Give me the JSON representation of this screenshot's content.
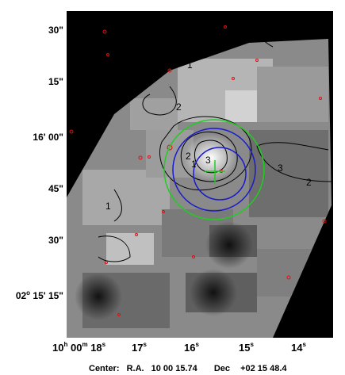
{
  "y_axis": {
    "labels": [
      {
        "text": "30\""
      },
      {
        "text": "15\""
      },
      {
        "text": "16' 00\""
      },
      {
        "text": "45\""
      },
      {
        "text": "30\""
      },
      {
        "text": "15\"",
        "prefix_deg": "02",
        "prefix_min": "15'"
      }
    ]
  },
  "x_axis": {
    "labels": [
      {
        "h": "10",
        "m": "00",
        "s": "18"
      },
      {
        "s": "17"
      },
      {
        "s": "16"
      },
      {
        "s": "15"
      },
      {
        "s": "14"
      }
    ],
    "unit_h": "h",
    "unit_m": "m",
    "unit_s": "s"
  },
  "footer": {
    "center_label": "Center:",
    "ra_label": "R.A.",
    "ra_value": "10 00 15.74",
    "dec_label": "Dec",
    "dec_value": "+02 15 48.4"
  },
  "contour_labels": [
    "1",
    "2",
    "3",
    "2",
    "1",
    "1",
    "2",
    "3"
  ],
  "colors": {
    "circle_outer": "#22cc22",
    "circle_inner": "#1a1acc",
    "cross": "#22cc22",
    "markers": "#e01010",
    "contours": "#000000"
  },
  "icons": [
    "crosshair-icon"
  ]
}
